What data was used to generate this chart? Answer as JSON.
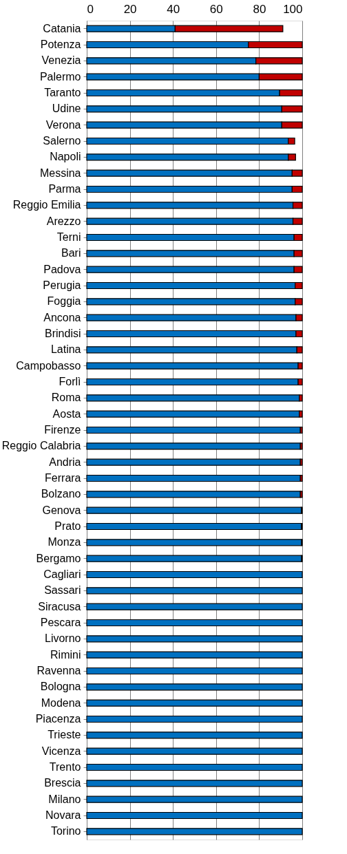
{
  "chart_data": {
    "type": "bar",
    "orientation": "horizontal",
    "stacked": true,
    "categories": [
      "Catania",
      "Potenza",
      "Venezia",
      "Palermo",
      "Taranto",
      "Udine",
      "Verona",
      "Salerno",
      "Napoli",
      "Messina",
      "Parma",
      "Reggio Emilia",
      "Arezzo",
      "Terni",
      "Bari",
      "Padova",
      "Perugia",
      "Foggia",
      "Ancona",
      "Brindisi",
      "Latina",
      "Campobasso",
      "Forlì",
      "Roma",
      "Aosta",
      "Firenze",
      "Reggio Calabria",
      "Andria",
      "Ferrara",
      "Bolzano",
      "Genova",
      "Prato",
      "Monza ",
      "Bergamo",
      "Cagliari",
      "Sassari",
      "Siracusa",
      "Pescara",
      "Livorno",
      "Rimini",
      "Ravenna",
      "Bologna",
      "Modena",
      "Piacenza",
      "Trieste",
      "Vicenza",
      "Trento",
      "Brescia",
      "Milano",
      "Novara",
      "Torino"
    ],
    "series": [
      {
        "color": "#0070c0",
        "values": [
          41,
          75,
          78.5,
          80,
          89.5,
          90.5,
          90.5,
          93.5,
          93.5,
          95.3,
          95.3,
          95.7,
          95.7,
          96.2,
          96.2,
          96.2,
          96.7,
          96.7,
          97.1,
          97.1,
          97.5,
          98.1,
          98.1,
          98.6,
          98.6,
          99.1,
          99.1,
          99.1,
          99.1,
          99.1,
          99.6,
          99.6,
          99.7,
          99.7,
          100,
          100,
          100,
          100,
          100,
          100,
          100,
          100,
          100,
          100,
          100,
          100,
          100,
          100,
          100,
          100,
          100
        ]
      },
      {
        "color": "#c00000",
        "values": [
          50,
          25,
          21.5,
          20,
          10.5,
          9.5,
          9.5,
          3,
          3.4,
          4.7,
          4.7,
          4.3,
          4.3,
          3.8,
          3.8,
          3.8,
          3.3,
          3.3,
          2.9,
          2.9,
          2.5,
          1.9,
          1.9,
          1.4,
          1.4,
          0.9,
          0.9,
          0.9,
          0.9,
          0.9,
          0.4,
          0.4,
          0.3,
          0.3,
          null,
          null,
          null,
          null,
          null,
          null,
          null,
          null,
          null,
          null,
          null,
          null,
          null,
          null,
          null,
          null,
          null
        ]
      }
    ],
    "xlim": [
      0,
      100
    ],
    "xticks": [
      0,
      20,
      40,
      60,
      80,
      100
    ],
    "grid": "x"
  }
}
